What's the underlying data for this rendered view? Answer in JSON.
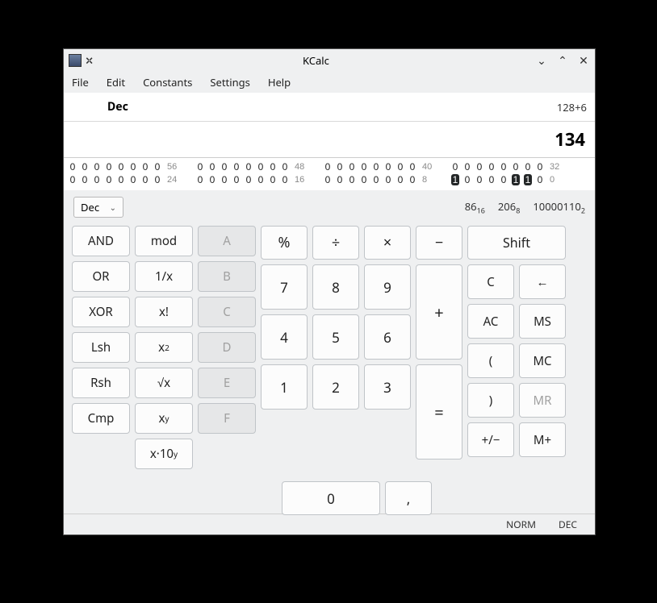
{
  "window": {
    "title": "KCalc"
  },
  "menu": {
    "file": "File",
    "edit": "Edit",
    "constants": "Constants",
    "settings": "Settings",
    "help": "Help"
  },
  "display": {
    "mode_label": "Dec",
    "history": "128+6",
    "result": "134"
  },
  "bits": {
    "row1": {
      "g1": [
        "0",
        "0",
        "0",
        "0",
        "0",
        "0",
        "0",
        "0"
      ],
      "l1": "56",
      "g2": [
        "0",
        "0",
        "0",
        "0",
        "0",
        "0",
        "0",
        "0"
      ],
      "l2": "48",
      "g3": [
        "0",
        "0",
        "0",
        "0",
        "0",
        "0",
        "0",
        "0"
      ],
      "l3": "40",
      "g4": [
        "0",
        "0",
        "0",
        "0",
        "0",
        "0",
        "0",
        "0"
      ],
      "l4": "32"
    },
    "row2": {
      "g1": [
        "0",
        "0",
        "0",
        "0",
        "0",
        "0",
        "0",
        "0"
      ],
      "l1": "24",
      "g2": [
        "0",
        "0",
        "0",
        "0",
        "0",
        "0",
        "0",
        "0"
      ],
      "l2": "16",
      "g3": [
        "0",
        "0",
        "0",
        "0",
        "0",
        "0",
        "0",
        "0"
      ],
      "l3": "8",
      "g4": [
        "1",
        "0",
        "0",
        "0",
        "0",
        "1",
        "1",
        "0"
      ],
      "l4": "0"
    }
  },
  "base": {
    "selected": "Dec",
    "hex": "86",
    "hex_sub": "16",
    "oct": "206",
    "oct_sub": "8",
    "bin": "10000110",
    "bin_sub": "2"
  },
  "logic": {
    "and": "AND",
    "or": "OR",
    "xor": "XOR",
    "lsh": "Lsh",
    "rsh": "Rsh",
    "cmp": "Cmp"
  },
  "fn": {
    "mod": "mod",
    "inv": "1/x",
    "fact": "x!",
    "sq": "x²",
    "sqrt": "√x",
    "pow": "xʸ",
    "exp10": "x·10ʸ"
  },
  "hex": {
    "a": "A",
    "b": "B",
    "c": "C",
    "d": "D",
    "e": "E",
    "f": "F"
  },
  "ops": {
    "pct": "%",
    "div": "÷",
    "mul": "×",
    "sub": "−",
    "add": "+",
    "eq": "="
  },
  "nums": {
    "n7": "7",
    "n8": "8",
    "n9": "9",
    "n4": "4",
    "n5": "5",
    "n6": "6",
    "n1": "1",
    "n2": "2",
    "n3": "3",
    "n0": "0",
    "comma": ","
  },
  "mem": {
    "shift": "Shift",
    "c": "C",
    "back": "←",
    "ac": "AC",
    "ms": "MS",
    "lp": "(",
    "mc": "MC",
    "rp": ")",
    "mr": "MR",
    "neg": "+/−",
    "mplus": "M+"
  },
  "status": {
    "norm": "NORM",
    "mode": "DEC"
  }
}
